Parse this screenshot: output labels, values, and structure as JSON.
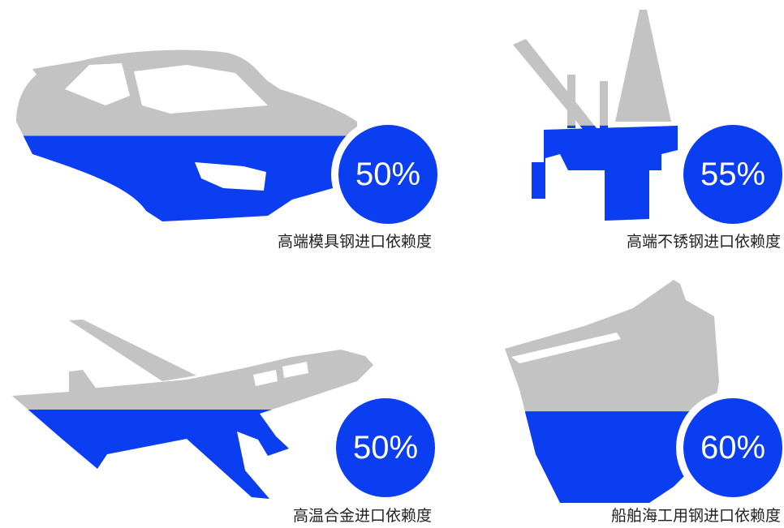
{
  "chart_data": {
    "type": "pictorial",
    "categories": [
      "高端模具钢进口依赖度",
      "高端不锈钢进口依赖度",
      "高温合金进口依赖度",
      "船舶海工用钢进口依赖度"
    ],
    "values": [
      50,
      55,
      50,
      60
    ],
    "value_labels": [
      "50%",
      "55%",
      "50%",
      "60%"
    ],
    "color": "#0b3ef0",
    "base_color": "#c3c3c3"
  }
}
